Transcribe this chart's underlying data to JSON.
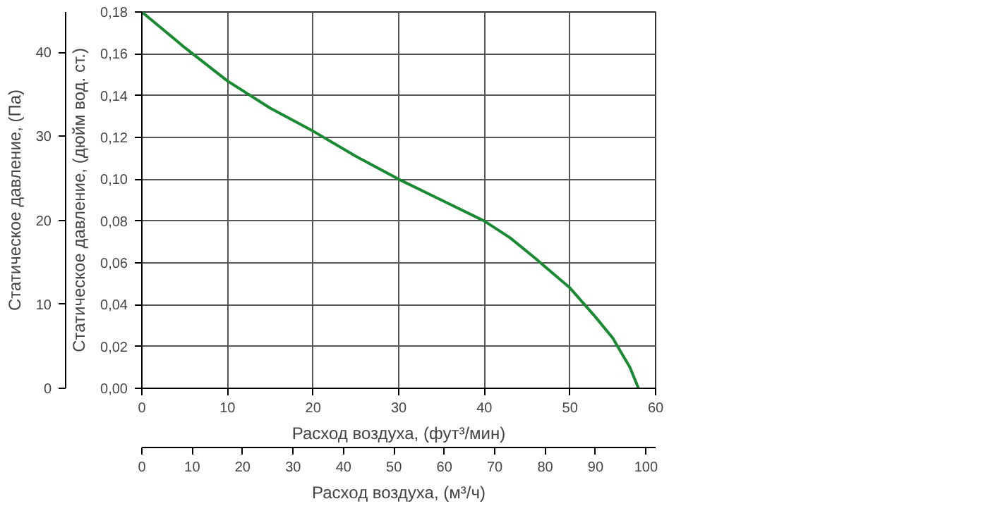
{
  "chart_data": {
    "type": "line",
    "xlabel": "Расход воздуха, (фут³/мин)",
    "ylabel": "Статическое давление, (дюйм вод. ст.)",
    "y2label": "Статическое давление, (Па)",
    "x2label": "Расход воздуха, (м³/ч)",
    "xlim": [
      0,
      60
    ],
    "xticks": [
      0,
      10,
      20,
      30,
      40,
      50,
      60
    ],
    "ylim": [
      0,
      0.18
    ],
    "yticks": [
      {
        "value": 0,
        "label": "0,00"
      },
      {
        "value": 0.02,
        "label": "0,02"
      },
      {
        "value": 0.04,
        "label": "0,04"
      },
      {
        "value": 0.06,
        "label": "0,06"
      },
      {
        "value": 0.08,
        "label": "0,08"
      },
      {
        "value": 0.1,
        "label": "0,10"
      },
      {
        "value": 0.12,
        "label": "0,12"
      },
      {
        "value": 0.14,
        "label": "0,14"
      },
      {
        "value": 0.16,
        "label": "0,16"
      },
      {
        "value": 0.18,
        "label": "0,18"
      }
    ],
    "y2lim": [
      0,
      44.8
    ],
    "y2ticks": [
      0,
      10,
      20,
      30,
      40
    ],
    "x2lim": [
      0,
      101.9
    ],
    "x2ticks": [
      0,
      10,
      20,
      30,
      40,
      50,
      60,
      70,
      80,
      90,
      100
    ],
    "grid": true,
    "marker": "none",
    "line_style": "solid",
    "series": [
      {
        "color": "#1a8a32",
        "x": [
          0,
          5,
          10,
          15,
          20,
          25,
          30,
          35,
          40,
          43,
          46,
          50,
          53,
          55,
          57,
          58
        ],
        "values": [
          0.18,
          0.163,
          0.147,
          0.134,
          0.123,
          0.111,
          0.1,
          0.09,
          0.08,
          0.072,
          0.062,
          0.048,
          0.034,
          0.024,
          0.01,
          0
        ]
      }
    ]
  }
}
